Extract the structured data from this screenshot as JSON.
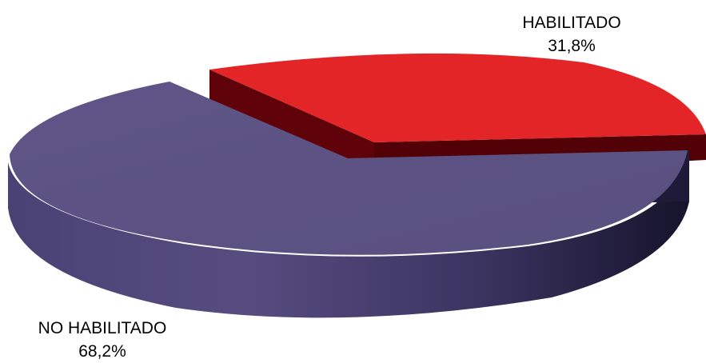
{
  "chart_data": {
    "type": "pie",
    "style": "3d-exploded",
    "slices": [
      {
        "label": "HABILITADO",
        "value": 31.8,
        "display": "31,8%",
        "color": "#e42527",
        "side_color": "#6b0208",
        "exploded": true
      },
      {
        "label": "NO HABILITADO",
        "value": 68.2,
        "display": "68,2%",
        "color": "#5d5386",
        "side_color": "#262145",
        "exploded": false
      }
    ]
  }
}
